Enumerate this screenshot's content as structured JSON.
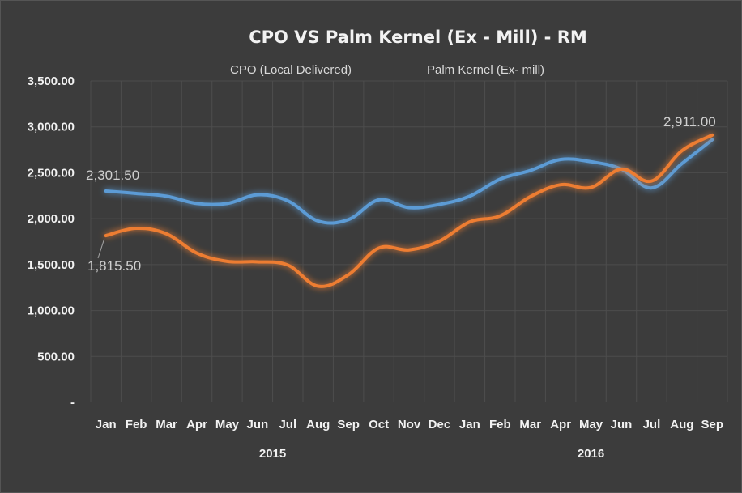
{
  "chart_data": {
    "type": "line",
    "title": "CPO VS Palm Kernel (Ex - Mill) - RM",
    "categories": [
      "Jan",
      "Feb",
      "Mar",
      "Apr",
      "May",
      "Jun",
      "Jul",
      "Aug",
      "Sep",
      "Oct",
      "Nov",
      "Dec",
      "Jan",
      "Feb",
      "Mar",
      "Apr",
      "May",
      "Jun",
      "Jul",
      "Aug",
      "Sep"
    ],
    "year_groups": [
      {
        "label": "2015",
        "start": 0,
        "end": 11
      },
      {
        "label": "2016",
        "start": 12,
        "end": 20
      }
    ],
    "yticks": [
      {
        "value": 0,
        "label": "-"
      },
      {
        "value": 500,
        "label": "500.00"
      },
      {
        "value": 1000,
        "label": "1,000.00"
      },
      {
        "value": 1500,
        "label": "1,500.00"
      },
      {
        "value": 2000,
        "label": "2,000.00"
      },
      {
        "value": 2500,
        "label": "2,500.00"
      },
      {
        "value": 3000,
        "label": "3,000.00"
      },
      {
        "value": 3500,
        "label": "3,500.00"
      }
    ],
    "ylim": [
      0,
      3500
    ],
    "grid": true,
    "legend_position": "top",
    "series": [
      {
        "name": "CPO (Local Delivered)",
        "color": "#5b9bd5",
        "values": [
          2301.5,
          2275,
          2245,
          2165,
          2165,
          2260,
          2195,
          1975,
          1990,
          2205,
          2120,
          2155,
          2245,
          2430,
          2525,
          2645,
          2620,
          2540,
          2335,
          2600,
          2860
        ]
      },
      {
        "name": "Palm Kernel (Ex- mill)",
        "color": "#ed7d31",
        "values": [
          1815.5,
          1895,
          1835,
          1625,
          1535,
          1530,
          1495,
          1265,
          1390,
          1680,
          1660,
          1755,
          1965,
          2030,
          2240,
          2370,
          2340,
          2540,
          2410,
          2740,
          2911
        ]
      }
    ],
    "annotations": [
      {
        "series": 0,
        "index": 0,
        "text": "2,301.50"
      },
      {
        "series": 1,
        "index": 0,
        "text": "1,815.50"
      },
      {
        "series": 1,
        "index": 20,
        "text": "2,911.00"
      }
    ]
  }
}
